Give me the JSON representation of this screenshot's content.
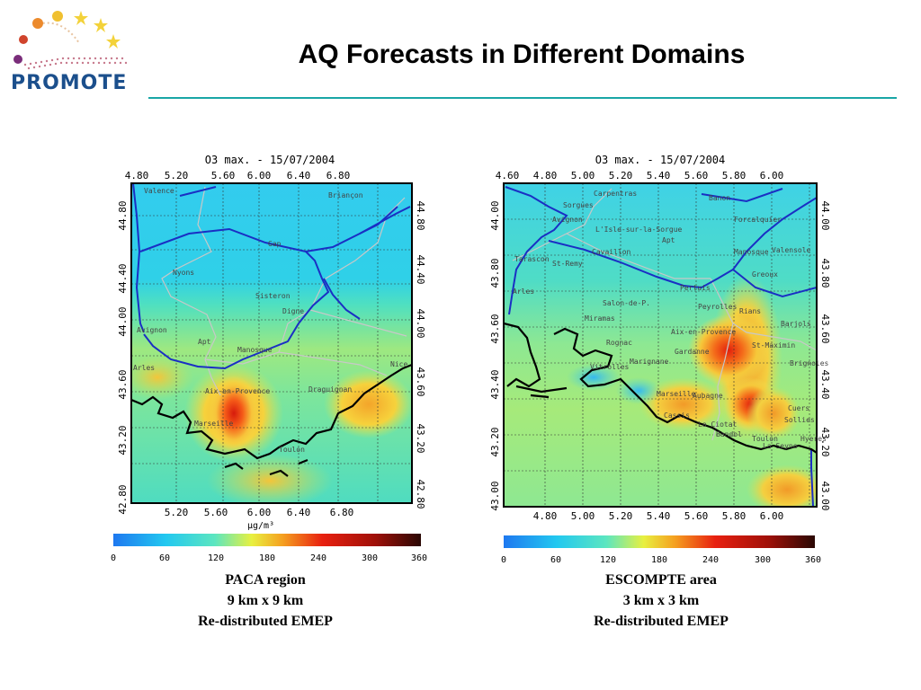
{
  "header": {
    "title": "AQ Forecasts in Different Domains",
    "logo_text": "PROMOTE"
  },
  "colors": {
    "accent_rule": "#19a6a6",
    "logo_text": "#1b4f8c",
    "coastline": "#000000",
    "rivers": "#1a2fc4",
    "borders": "#c8c8c8"
  },
  "maps": [
    {
      "id": "left",
      "title": "O3 max. - 15/07/2004",
      "top_ticks": [
        "4.80",
        "5.20",
        "5.60",
        "6.00",
        "6.40",
        "6.80"
      ],
      "bottom_ticks": [
        "5.20",
        "5.60",
        "6.00",
        "6.40",
        "6.80"
      ],
      "left_ticks": [
        "44.80",
        "44.40",
        "44.00",
        "43.60",
        "43.20",
        "42.80"
      ],
      "right_ticks": [
        "44.80",
        "44.40",
        "44.00",
        "43.60",
        "43.20",
        "42.80"
      ],
      "unit": "µg/m³",
      "cities": [
        "Valence",
        "Briançon",
        "Gap",
        "Nyons",
        "Sisteron",
        "Digne",
        "Avignon",
        "Apt",
        "Manosque",
        "Aix-en-Provence",
        "Draguignan",
        "Nice",
        "Arles",
        "Marseille",
        "Toulon"
      ],
      "colorbar_ticks": [
        "0",
        "60",
        "120",
        "180",
        "240",
        "300",
        "360"
      ],
      "caption": [
        "PACA region",
        "9 km x 9 km",
        "Re-distributed EMEP"
      ]
    },
    {
      "id": "right",
      "title": "O3 max. - 15/07/2004",
      "top_ticks": [
        "4.60",
        "4.80",
        "5.00",
        "5.20",
        "5.40",
        "5.60",
        "5.80",
        "6.00"
      ],
      "bottom_ticks": [
        "4.80",
        "5.00",
        "5.20",
        "5.40",
        "5.60",
        "5.80",
        "6.00"
      ],
      "left_ticks": [
        "44.00",
        "43.80",
        "43.60",
        "43.40",
        "43.20",
        "43.00"
      ],
      "right_ticks": [
        "44.00",
        "43.80",
        "43.60",
        "43.40",
        "43.20",
        "43.00"
      ],
      "cities": [
        "Carpentras",
        "Banon",
        "Sorgues",
        "Avignon",
        "Forcalquier",
        "L'Isle-sur-la-Sorgue",
        "Apt",
        "Tarascon",
        "Cavaillon",
        "Manosque",
        "Valensole",
        "St-Remy",
        "Greoux",
        "Arles",
        "Pertuis",
        "Salon-de-P.",
        "Peyrolles",
        "Rians",
        "Barjols",
        "Miramas",
        "Rognac",
        "Aix-en-Provence",
        "St-Maximin",
        "Gardanne",
        "Brignoles",
        "Vitrolles",
        "Marignane",
        "Marseille",
        "Aubagne",
        "Cassis",
        "La Ciotat",
        "Cuers",
        "Sollies",
        "Bandol",
        "Toulon",
        "La Seyne",
        "Hyeres"
      ],
      "colorbar_ticks": [
        "0",
        "60",
        "120",
        "180",
        "240",
        "300",
        "360"
      ],
      "caption": [
        "ESCOMPTE area",
        "3 km x 3 km",
        "Re-distributed EMEP"
      ]
    }
  ]
}
